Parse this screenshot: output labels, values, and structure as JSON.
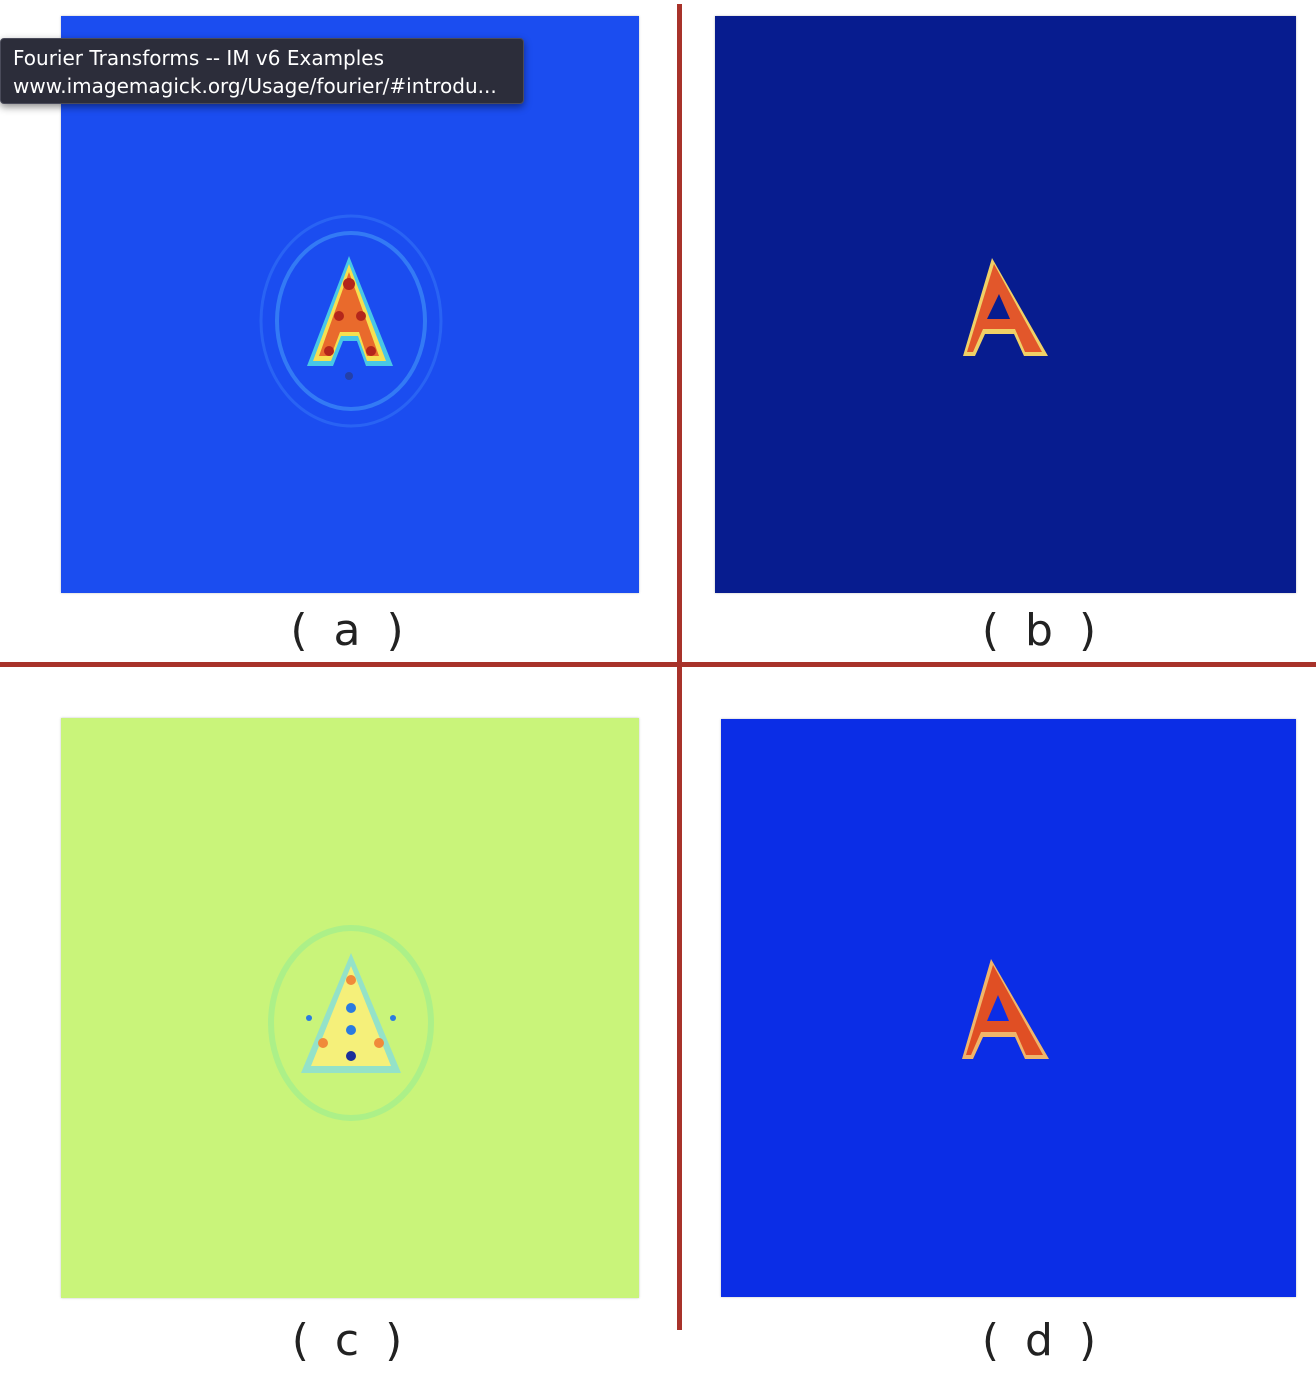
{
  "tooltip": {
    "title": "Fourier Transforms -- IM v6 Examples",
    "url": "www.imagemagick.org/Usage/fourier/#introdu..."
  },
  "panels": [
    {
      "label": "( a )",
      "background": "#1b4df0",
      "glyph": "A"
    },
    {
      "label": "( b )",
      "background": "#071c8f",
      "glyph": "A"
    },
    {
      "label": "( c )",
      "background": "#c9f47a",
      "glyph": "A"
    },
    {
      "label": "( d )",
      "background": "#0b2de6",
      "glyph": "A"
    }
  ],
  "colors": {
    "divider": "#a8322a",
    "glyph_core": "#e0562c",
    "glyph_halo": "#f2d34a"
  }
}
